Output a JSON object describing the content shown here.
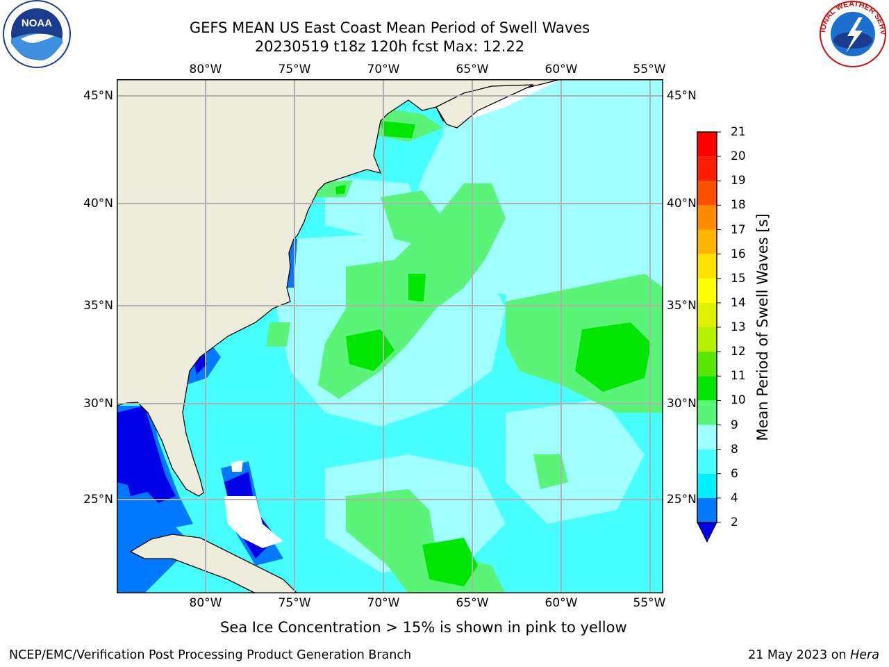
{
  "title": {
    "line1": "GEFS MEAN US East Coast Mean Period of Swell Waves",
    "line2": "20230519 t18z 120h fcst   Max: 12.22"
  },
  "map": {
    "lon_labels": [
      "80°W",
      "75°W",
      "70°W",
      "65°W",
      "60°W",
      "55°W"
    ],
    "lat_labels": [
      "45°N",
      "40°N",
      "35°N",
      "30°N",
      "25°N"
    ],
    "colors": {
      "land": "#eeeddc",
      "grid": "#b0b0b0",
      "coast": "#000000"
    }
  },
  "colorbar": {
    "label": "Mean Period of Swell Waves [s]",
    "ticks": [
      "2",
      "4",
      "6",
      "8",
      "9",
      "10",
      "11",
      "12",
      "13",
      "14",
      "15",
      "16",
      "17",
      "18",
      "19",
      "20",
      "21"
    ],
    "colors": [
      "#0000e6",
      "#0078ff",
      "#00f0ff",
      "#48ffff",
      "#a0ffff",
      "#5af578",
      "#00e600",
      "#5ae600",
      "#b4f000",
      "#dcf000",
      "#ffff00",
      "#ffe100",
      "#ffb400",
      "#ff8c00",
      "#ff5000",
      "#ff1e00",
      "#ff0000"
    ],
    "extend": "min"
  },
  "note": "Sea Ice Concentration > 15% is shown in pink to yellow",
  "footer": {
    "left": "NCEP/EMC/Verification Post Processing Product Generation Branch",
    "date": "21 May 2023 on",
    "machine": "Hera"
  },
  "logos": {
    "left": "NOAA",
    "right_ring": "NATIONAL WEATHER SERVICE"
  }
}
